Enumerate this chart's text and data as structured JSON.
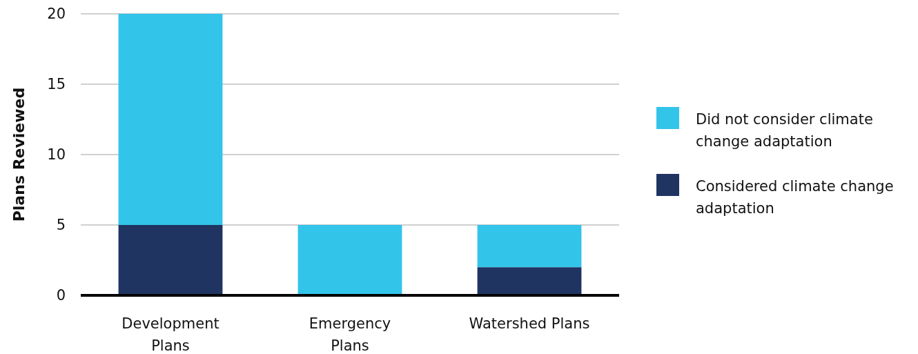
{
  "chart_data": {
    "type": "bar",
    "stacked": true,
    "ylabel": "Plans Reviewed",
    "categories": [
      "Development Plans",
      "Emergency Plans",
      "Watershed Plans"
    ],
    "series": [
      {
        "name": "Considered climate change adaptation",
        "color": "#1f3461",
        "values": [
          5,
          0,
          2
        ]
      },
      {
        "name": "Did not consider climate change adaptation",
        "color": "#33c4ea",
        "values": [
          15,
          5,
          3
        ]
      }
    ],
    "ylim": [
      0,
      20
    ],
    "yticks": [
      0,
      5,
      10,
      15,
      20
    ],
    "grid": "y",
    "legend": "right"
  }
}
